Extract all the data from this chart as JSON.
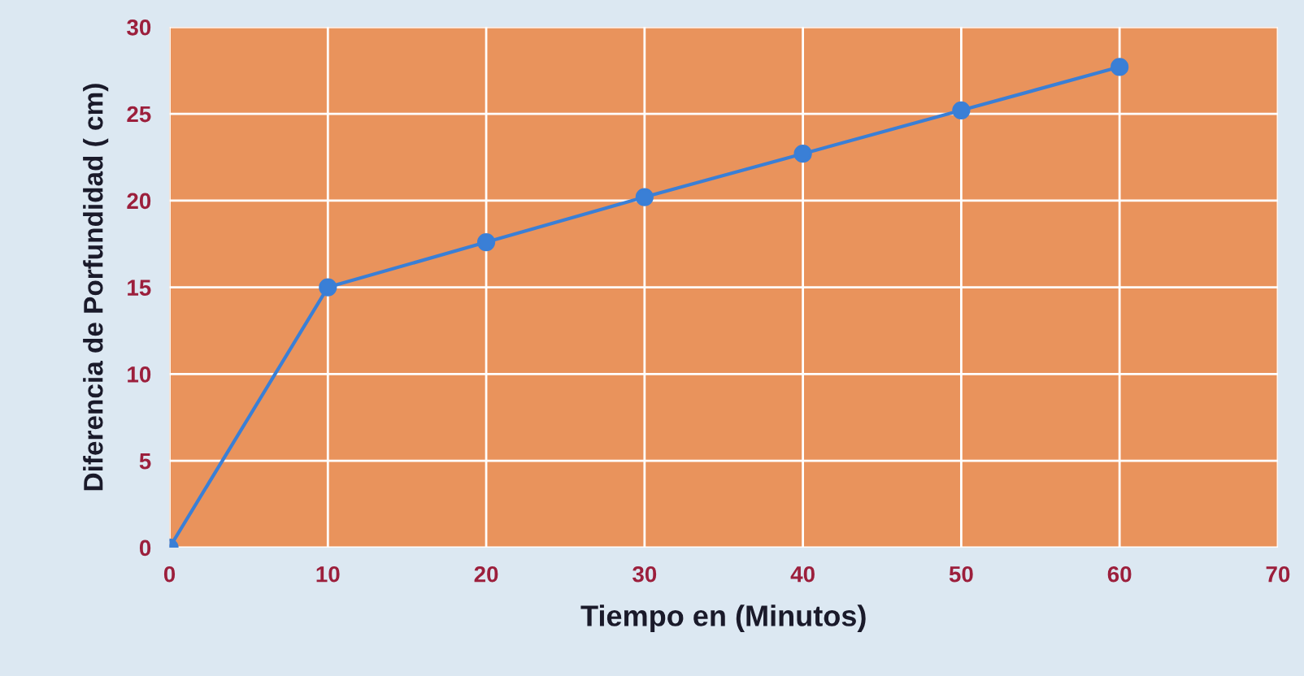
{
  "chart_data": {
    "type": "line",
    "xlabel": "Tiempo en (Minutos)",
    "ylabel": "Diferencia de Porfundidad ( cm)",
    "x": [
      0,
      10,
      20,
      30,
      40,
      50,
      60
    ],
    "series": [
      {
        "color": "#3a7fd6",
        "values": [
          0,
          15,
          17.6,
          20.2,
          22.7,
          25.2,
          27.7
        ]
      }
    ],
    "xlim": [
      0,
      70
    ],
    "xticks": [
      0,
      10,
      20,
      30,
      40,
      50,
      60,
      70
    ],
    "ylim": [
      0,
      30
    ],
    "yticks": [
      0,
      5,
      10,
      15,
      20,
      25,
      30
    ],
    "grid": true,
    "marker": "circle",
    "line_style": "solid"
  }
}
